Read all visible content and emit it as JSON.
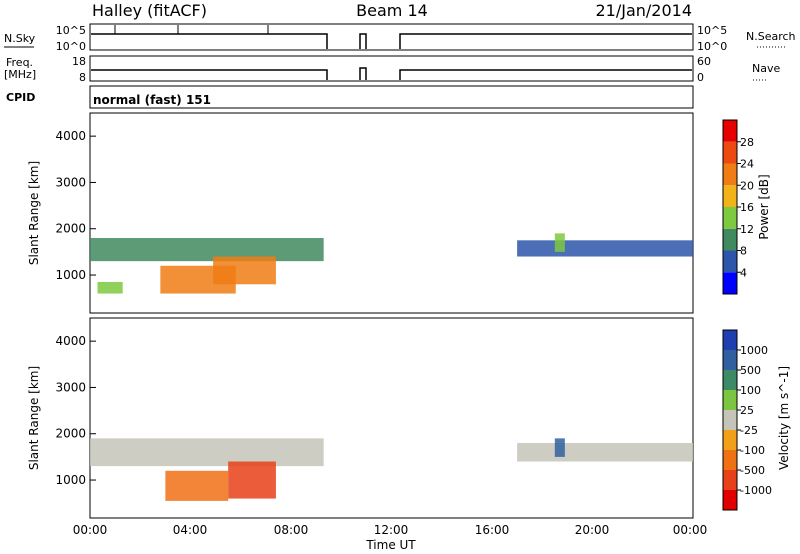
{
  "header": {
    "station": "Halley (fitACF)",
    "beam": "Beam 14",
    "date": "21/Jan/2014"
  },
  "strip_labels": {
    "nsky": "N.Sky",
    "nsky_ticks": [
      "10^5",
      "10^0"
    ],
    "nsearch": "N.Search",
    "nsearch_ticks": [
      "10^5",
      "10^0"
    ],
    "freq": "Freq.",
    "freq_unit": "[MHz]",
    "freq_ticks": [
      "18",
      "8"
    ],
    "nave": "Nave",
    "nave_ticks": [
      "60",
      "0"
    ],
    "cpid": "CPID",
    "cpid_value": "normal (fast) 151"
  },
  "panels": {
    "ylabel": "Slant Range [km]",
    "xlabel": "Time UT",
    "xticks": [
      "00:00",
      "04:00",
      "08:00",
      "12:00",
      "16:00",
      "20:00",
      "00:00"
    ],
    "yticks": [
      "1000",
      "2000",
      "3000",
      "4000"
    ]
  },
  "power_scale": {
    "label": "Power [dB]",
    "ticks": [
      "4",
      "8",
      "12",
      "16",
      "20",
      "24",
      "28"
    ],
    "colors": [
      "#0000ff",
      "#2d55aa",
      "#3f8a5e",
      "#7dc940",
      "#f2b31a",
      "#f07d14",
      "#ed4a12",
      "#e60000"
    ]
  },
  "velocity_scale": {
    "label": "Velocity [m s^-1]",
    "ticks": [
      "1000",
      "500",
      "100",
      "25",
      "-25",
      "-100",
      "-500",
      "-1000"
    ],
    "colors": [
      "#1f3fb0",
      "#3060a0",
      "#3d8a66",
      "#7cc540",
      "#c6c4b8",
      "#f2a01a",
      "#f07014",
      "#e84018",
      "#e00000"
    ]
  },
  "chart_data": {
    "type": "heatmap",
    "x_range_hours": [
      0,
      24
    ],
    "y_range_km": [
      180,
      4500
    ],
    "data_gap_hours": [
      [
        9.3,
        10.7
      ],
      [
        11.0,
        12.0
      ]
    ],
    "power_patches": [
      {
        "t0": 0.0,
        "t1": 9.3,
        "r0": 1300,
        "r1": 1800,
        "value": 8
      },
      {
        "t0": 2.8,
        "t1": 5.8,
        "r0": 600,
        "r1": 1200,
        "value": 22
      },
      {
        "t0": 4.9,
        "t1": 7.4,
        "r0": 800,
        "r1": 1400,
        "value": 20
      },
      {
        "t0": 0.3,
        "t1": 1.3,
        "r0": 600,
        "r1": 850,
        "value": 14
      },
      {
        "t0": 17.0,
        "t1": 24.0,
        "r0": 1400,
        "r1": 1750,
        "value": 6
      },
      {
        "t0": 18.5,
        "t1": 18.9,
        "r0": 1500,
        "r1": 1900,
        "value": 12
      }
    ],
    "velocity_patches": [
      {
        "t0": 0.0,
        "t1": 9.3,
        "r0": 1300,
        "r1": 1900,
        "value": 0
      },
      {
        "t0": 3.0,
        "t1": 5.5,
        "r0": 550,
        "r1": 1200,
        "value": -250
      },
      {
        "t0": 5.5,
        "t1": 7.4,
        "r0": 600,
        "r1": 1400,
        "value": -600
      },
      {
        "t0": 17.0,
        "t1": 24.0,
        "r0": 1400,
        "r1": 1800,
        "value": 0
      },
      {
        "t0": 18.5,
        "t1": 18.9,
        "r0": 1500,
        "r1": 1900,
        "value": 800
      }
    ]
  }
}
